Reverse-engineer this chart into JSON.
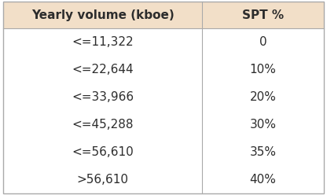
{
  "col1_header": "Yearly volume (kboe)",
  "col2_header": "SPT %",
  "rows": [
    [
      "<=11,322",
      "0"
    ],
    [
      "<=22,644",
      "10%"
    ],
    [
      "<=33,966",
      "20%"
    ],
    [
      "<=45,288",
      "30%"
    ],
    [
      "<=56,610",
      "35%"
    ],
    [
      ">56,610",
      "40%"
    ]
  ],
  "header_bg_color": "#f2dfc8",
  "row_bg_color": "#ffffff",
  "header_text_color": "#2d2d2d",
  "row_text_color": "#2d2d2d",
  "border_color": "#aaaaaa",
  "header_fontsize": 11,
  "row_fontsize": 11,
  "figsize": [
    4.16,
    2.48
  ],
  "dpi": 100
}
